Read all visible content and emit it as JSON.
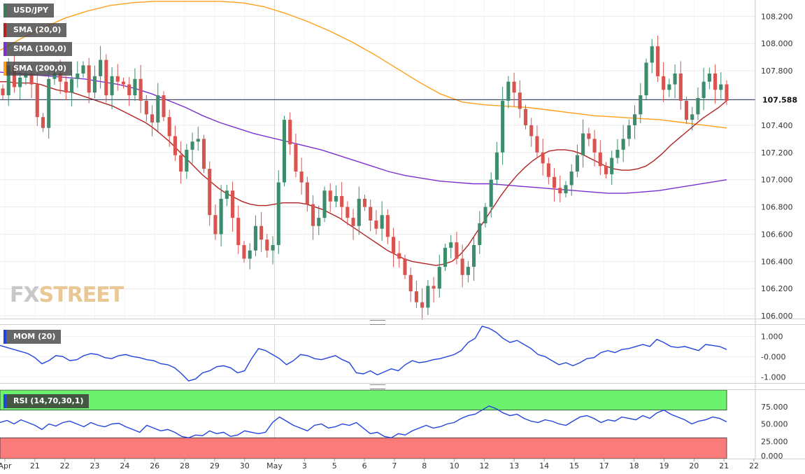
{
  "instrument": "USD/JPY",
  "price_tag": "107.588",
  "logo": {
    "part1": "FX",
    "part2": "STREET"
  },
  "labels": {
    "main": "USD/JPY",
    "sma20": "SMA (20,0)",
    "sma100": "SMA (100,0)",
    "sma200": "SMA (200,0)",
    "mom": "MOM (20)",
    "rsi": "RSI (14,70,30,1)"
  },
  "colors": {
    "bull": "#3d8c6c",
    "bear": "#d9534f",
    "sma20": "#b22222",
    "sma100": "#7b2fd1",
    "sma200": "#ff9f1a",
    "mom": "#2244dd",
    "rsi": "#2244dd",
    "overbought_zone": "#6cf26c",
    "oversold_zone": "#fb7b7b",
    "price_line": "#1a2a55"
  },
  "chart_data": [
    {
      "type": "candlestick",
      "panel": "price",
      "y_ticks": [
        "108.200",
        "108.000",
        "107.800",
        "107.600",
        "107.400",
        "107.200",
        "107.000",
        "106.800",
        "106.600",
        "106.400",
        "106.200",
        "106.000"
      ],
      "ylim": [
        105.98,
        108.32
      ],
      "last_price": 107.588,
      "x_labels": [
        "Apr",
        "21",
        "22",
        "23",
        "24",
        "26",
        "28",
        "29",
        "30",
        "May",
        "3",
        "5",
        "6",
        "7",
        "8",
        "10",
        "12",
        "13",
        "14",
        "15",
        "17",
        "18",
        "19",
        "20",
        "21",
        "22"
      ],
      "closes": [
        107.62,
        107.84,
        107.68,
        107.75,
        107.78,
        107.7,
        107.46,
        107.38,
        107.74,
        107.78,
        107.72,
        107.64,
        107.74,
        107.78,
        107.84,
        107.64,
        107.76,
        107.88,
        107.62,
        107.76,
        107.72,
        107.7,
        107.62,
        107.74,
        107.58,
        107.48,
        107.42,
        107.62,
        107.46,
        107.32,
        107.18,
        107.06,
        107.22,
        107.28,
        107.3,
        107.08,
        106.74,
        106.6,
        106.86,
        106.92,
        106.72,
        106.52,
        106.42,
        106.48,
        106.66,
        106.56,
        106.48,
        106.52,
        106.98,
        107.44,
        107.26,
        107.06,
        106.98,
        106.82,
        106.66,
        106.72,
        106.92,
        106.84,
        106.88,
        106.8,
        106.72,
        106.66,
        106.86,
        106.8,
        106.7,
        106.64,
        106.74,
        106.58,
        106.46,
        106.42,
        106.3,
        106.18,
        106.1,
        106.06,
        106.22,
        106.2,
        106.36,
        106.5,
        106.54,
        106.42,
        106.3,
        106.36,
        106.52,
        106.68,
        106.8,
        107.0,
        107.2,
        107.58,
        107.72,
        107.64,
        107.52,
        107.4,
        107.32,
        107.2,
        107.12,
        107.02,
        106.94,
        106.9,
        106.96,
        107.06,
        107.18,
        107.34,
        107.3,
        107.2,
        107.1,
        107.04,
        107.16,
        107.22,
        107.3,
        107.4,
        107.48,
        107.62,
        107.86,
        107.98,
        107.76,
        107.66,
        107.7,
        107.78,
        107.58,
        107.44,
        107.48,
        107.6,
        107.72,
        107.78,
        107.66,
        107.7,
        107.58
      ],
      "sma20": [
        107.72,
        107.72,
        107.71,
        107.71,
        107.71,
        107.7,
        107.68,
        107.66,
        107.65,
        107.64,
        107.62,
        107.6,
        107.58,
        107.56,
        107.54,
        107.51,
        107.48,
        107.45,
        107.42,
        107.38,
        107.33,
        107.28,
        107.22,
        107.16,
        107.1,
        107.04,
        106.99,
        106.94,
        106.9,
        106.87,
        106.84,
        106.82,
        106.81,
        106.81,
        106.82,
        106.83,
        106.83,
        106.83,
        106.82,
        106.8,
        106.78,
        106.75,
        106.72,
        106.68,
        106.64,
        106.6,
        106.56,
        106.52,
        106.48,
        106.45,
        106.42,
        106.4,
        106.39,
        106.38,
        106.37,
        106.38,
        106.4,
        106.45,
        106.52,
        106.61,
        106.7,
        106.79,
        106.88,
        106.96,
        107.03,
        107.09,
        107.14,
        107.18,
        107.21,
        107.22,
        107.22,
        107.21,
        107.19,
        107.16,
        107.13,
        107.1,
        107.08,
        107.07,
        107.07,
        107.08,
        107.1,
        107.14,
        107.19,
        107.25,
        107.3,
        107.35,
        107.4,
        107.45,
        107.49,
        107.53,
        107.58
      ],
      "sma100": [
        107.79,
        107.78,
        107.77,
        107.76,
        107.75,
        107.74,
        107.72,
        107.7,
        107.67,
        107.63,
        107.58,
        107.53,
        107.47,
        107.42,
        107.38,
        107.34,
        107.31,
        107.28,
        107.25,
        107.22,
        107.18,
        107.14,
        107.1,
        107.06,
        107.03,
        107.01,
        106.99,
        106.98,
        106.97,
        106.97,
        106.96,
        106.95,
        106.94,
        106.93,
        106.92,
        106.91,
        106.9,
        106.9,
        106.91,
        106.92,
        106.94,
        106.96,
        106.98,
        107.0
      ],
      "sma200": [
        107.95,
        108.04,
        108.12,
        108.19,
        108.24,
        108.28,
        108.3,
        108.31,
        108.31,
        108.31,
        108.31,
        108.3,
        108.27,
        108.22,
        108.16,
        108.09,
        108.01,
        107.92,
        107.82,
        107.72,
        107.63,
        107.57,
        107.55,
        107.54,
        107.53,
        107.51,
        107.49,
        107.47,
        107.46,
        107.45,
        107.44,
        107.42,
        107.4,
        107.38
      ]
    },
    {
      "type": "line",
      "panel": "momentum",
      "title": "MOM (20)",
      "y_ticks": [
        "1.000",
        "-0.000",
        "-1.000"
      ],
      "ylim": [
        -1.3,
        1.6
      ],
      "values": [
        0.55,
        0.45,
        0.35,
        0.25,
        0.15,
        -0.05,
        -0.35,
        -0.2,
        0.05,
        0.0,
        -0.2,
        -0.15,
        0.05,
        0.15,
        0.1,
        -0.05,
        -0.1,
        0.05,
        0.1,
        0.0,
        -0.05,
        -0.15,
        -0.2,
        -0.35,
        -0.4,
        -0.55,
        -0.85,
        -1.2,
        -1.1,
        -0.8,
        -0.7,
        -0.5,
        -0.45,
        -0.55,
        -0.8,
        -0.7,
        -0.1,
        0.4,
        0.3,
        0.1,
        -0.1,
        -0.4,
        -0.2,
        0.1,
        0.05,
        -0.1,
        -0.15,
        -0.05,
        0.05,
        -0.15,
        -0.3,
        -0.8,
        -0.85,
        -0.7,
        -0.9,
        -0.75,
        -0.6,
        -0.7,
        -0.4,
        -0.2,
        -0.3,
        -0.25,
        -0.15,
        -0.1,
        0.0,
        0.1,
        0.3,
        0.7,
        0.9,
        1.5,
        1.4,
        1.2,
        0.9,
        0.7,
        0.8,
        0.6,
        0.4,
        0.1,
        0.0,
        -0.2,
        -0.4,
        -0.3,
        -0.45,
        -0.3,
        -0.1,
        -0.05,
        0.2,
        0.3,
        0.2,
        0.35,
        0.4,
        0.5,
        0.6,
        0.5,
        0.85,
        0.7,
        0.5,
        0.45,
        0.5,
        0.4,
        0.3,
        0.6,
        0.55,
        0.5,
        0.35
      ]
    },
    {
      "type": "line",
      "panel": "rsi",
      "title": "RSI (14,70,30,1)",
      "y_ticks": [
        "75.000",
        "50.000",
        "25.000",
        "0.000"
      ],
      "ylim": [
        0,
        100
      ],
      "overbought": 70,
      "oversold": 30,
      "values": [
        52,
        55,
        50,
        56,
        52,
        48,
        42,
        50,
        47,
        52,
        54,
        50,
        46,
        52,
        48,
        46,
        50,
        51,
        46,
        42,
        38,
        48,
        44,
        40,
        42,
        38,
        32,
        30,
        34,
        33,
        40,
        36,
        38,
        32,
        34,
        40,
        38,
        36,
        38,
        52,
        60,
        54,
        48,
        44,
        40,
        48,
        50,
        44,
        46,
        50,
        48,
        52,
        44,
        36,
        38,
        32,
        30,
        36,
        34,
        40,
        44,
        48,
        44,
        46,
        50,
        52,
        58,
        62,
        64,
        70,
        76,
        72,
        66,
        62,
        64,
        58,
        54,
        52,
        56,
        54,
        50,
        48,
        54,
        60,
        62,
        58,
        52,
        56,
        54,
        60,
        58,
        56,
        62,
        58,
        66,
        70,
        64,
        60,
        56,
        50,
        54,
        56,
        60,
        58,
        53
      ]
    }
  ]
}
